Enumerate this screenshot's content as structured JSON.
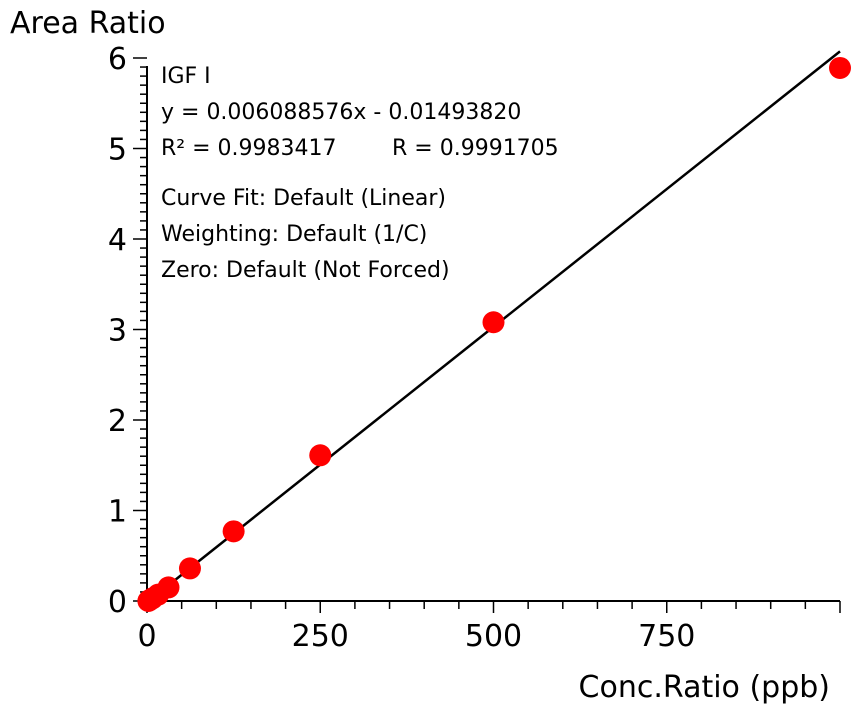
{
  "chart_data": {
    "type": "scatter",
    "xlabel": "Conc.Ratio (ppb)",
    "ylabel": "Area Ratio",
    "xlim": [
      0,
      1000
    ],
    "ylim": [
      0,
      6
    ],
    "x_ticks": [
      0,
      250,
      500,
      750
    ],
    "x_tick_labels": [
      "0",
      "250",
      "500",
      "750"
    ],
    "y_ticks": [
      0,
      1,
      2,
      3,
      4,
      5,
      6
    ],
    "y_tick_labels": [
      "0",
      "1",
      "2",
      "3",
      "4",
      "5",
      "6"
    ],
    "grid": false,
    "point_color": "#ff0000",
    "line_color": "#000000",
    "points": [
      {
        "x": 2,
        "y": 0.0
      },
      {
        "x": 4,
        "y": 0.01
      },
      {
        "x": 8,
        "y": 0.03
      },
      {
        "x": 16,
        "y": 0.07
      },
      {
        "x": 31,
        "y": 0.15
      },
      {
        "x": 62,
        "y": 0.36
      },
      {
        "x": 125,
        "y": 0.77
      },
      {
        "x": 250,
        "y": 1.61
      },
      {
        "x": 500,
        "y": 3.08
      },
      {
        "x": 1000,
        "y": 5.89
      }
    ],
    "fit": {
      "slope": 0.006088576,
      "intercept": -0.0149382,
      "x_range": [
        4,
        1000
      ]
    },
    "annotation": {
      "compound": "IGF I",
      "equation": "y = 0.006088576x - 0.01493820",
      "r_squared": "R² = 0.9983417",
      "r_value": "R = 0.9991705",
      "curve_fit": "Curve Fit: Default (Linear)",
      "weighting": "Weighting: Default (1/C)",
      "zero": "Zero: Default (Not Forced)"
    }
  }
}
